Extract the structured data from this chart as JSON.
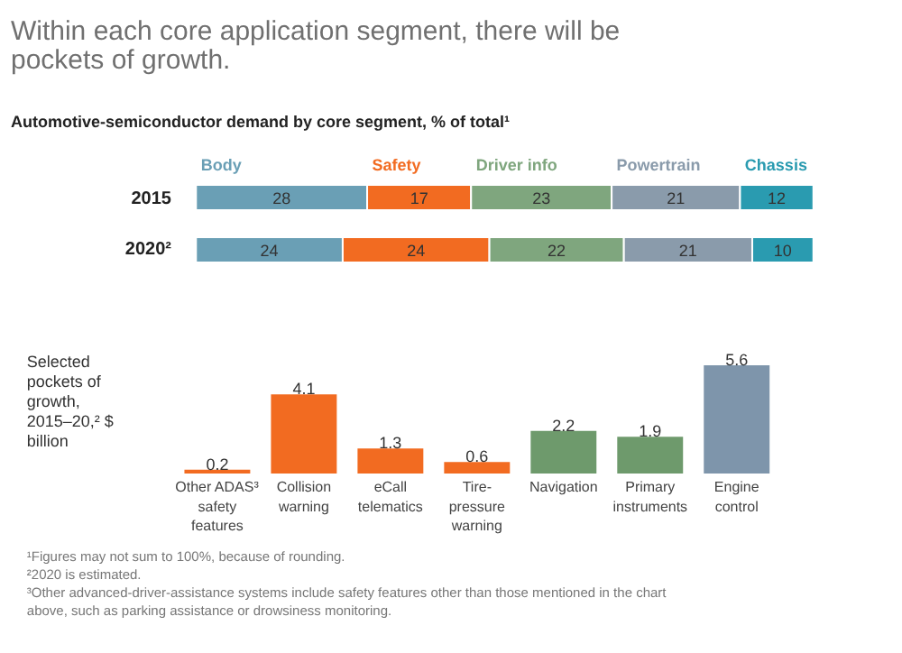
{
  "chart_data": [
    {
      "type": "bar",
      "orientation": "horizontal",
      "stacked": true,
      "title": "Within each core application segment, there will be pockets of growth.",
      "subtitle": "Automotive-semiconductor demand by core segment, % of total¹",
      "categories": [
        "2015",
        "2020²"
      ],
      "data_labels": true,
      "legend": "top",
      "tick_labels": "y",
      "series": [
        {
          "name": "Body",
          "color": "#6a9fb5",
          "values": [
            28,
            24
          ]
        },
        {
          "name": "Safety",
          "color": "#f26b21",
          "values": [
            17,
            24
          ]
        },
        {
          "name": "Driver info",
          "color": "#7fa67e",
          "values": [
            23,
            22
          ]
        },
        {
          "name": "Powertrain",
          "color": "#8a9bab",
          "values": [
            21,
            21
          ]
        },
        {
          "name": "Chassis",
          "color": "#2a9bb0",
          "values": [
            12,
            10
          ]
        }
      ]
    },
    {
      "type": "bar",
      "title": "Selected pockets of growth, 2015–20,² $ billion",
      "categories": [
        "Other ADAS³ safety features",
        "Collision warning",
        "eCall telematics",
        "Tire-pressure warning",
        "Navigation",
        "Primary instruments",
        "Engine control"
      ],
      "values": [
        0.2,
        4.1,
        1.3,
        0.6,
        2.2,
        1.9,
        5.6
      ],
      "colors": [
        "#f26b21",
        "#f26b21",
        "#f26b21",
        "#f26b21",
        "#6e9a6c",
        "#6e9a6c",
        "#7e95ab"
      ],
      "data_labels": true,
      "tick_labels": "x",
      "annotations": [
        "¹Figures may not sum to 100%, because of rounding.",
        "²2020 is estimated.",
        "³Other advanced-driver-assistance systems include safety features other than those mentioned in the chart above, such as parking assistance or drowsiness monitoring."
      ]
    }
  ]
}
